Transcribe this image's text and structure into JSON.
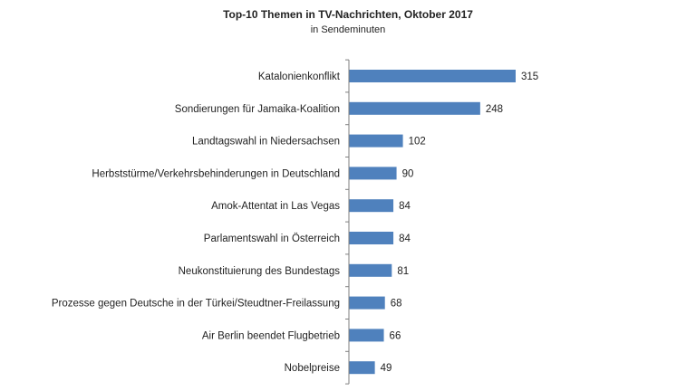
{
  "chart_data": {
    "type": "bar",
    "orientation": "horizontal",
    "title": "Top-10 Themen in TV-Nachrichten, Oktober 2017",
    "subtitle": "in Sendeminuten",
    "categories": [
      "Katalonienkonflikt",
      "Sondierungen für Jamaika-Koalition",
      "Landtagswahl in Niedersachsen",
      "Herbststürme/Verkehrsbehinderungen in Deutschland",
      "Amok-Attentat in Las Vegas",
      "Parlamentswahl in Österreich",
      "Neukonstituierung des Bundestags",
      "Prozesse gegen Deutsche in der Türkei/Steudtner-Freilassung",
      "Air Berlin beendet Flugbetrieb",
      "Nobelpreise"
    ],
    "values": [
      315,
      248,
      102,
      90,
      84,
      84,
      81,
      68,
      66,
      49
    ],
    "xlim": [
      0,
      315
    ],
    "grid": false,
    "legend": "none",
    "colors": {
      "bar": "#4f81bd",
      "axis": "#7f7f7f",
      "text": "#222222"
    }
  }
}
